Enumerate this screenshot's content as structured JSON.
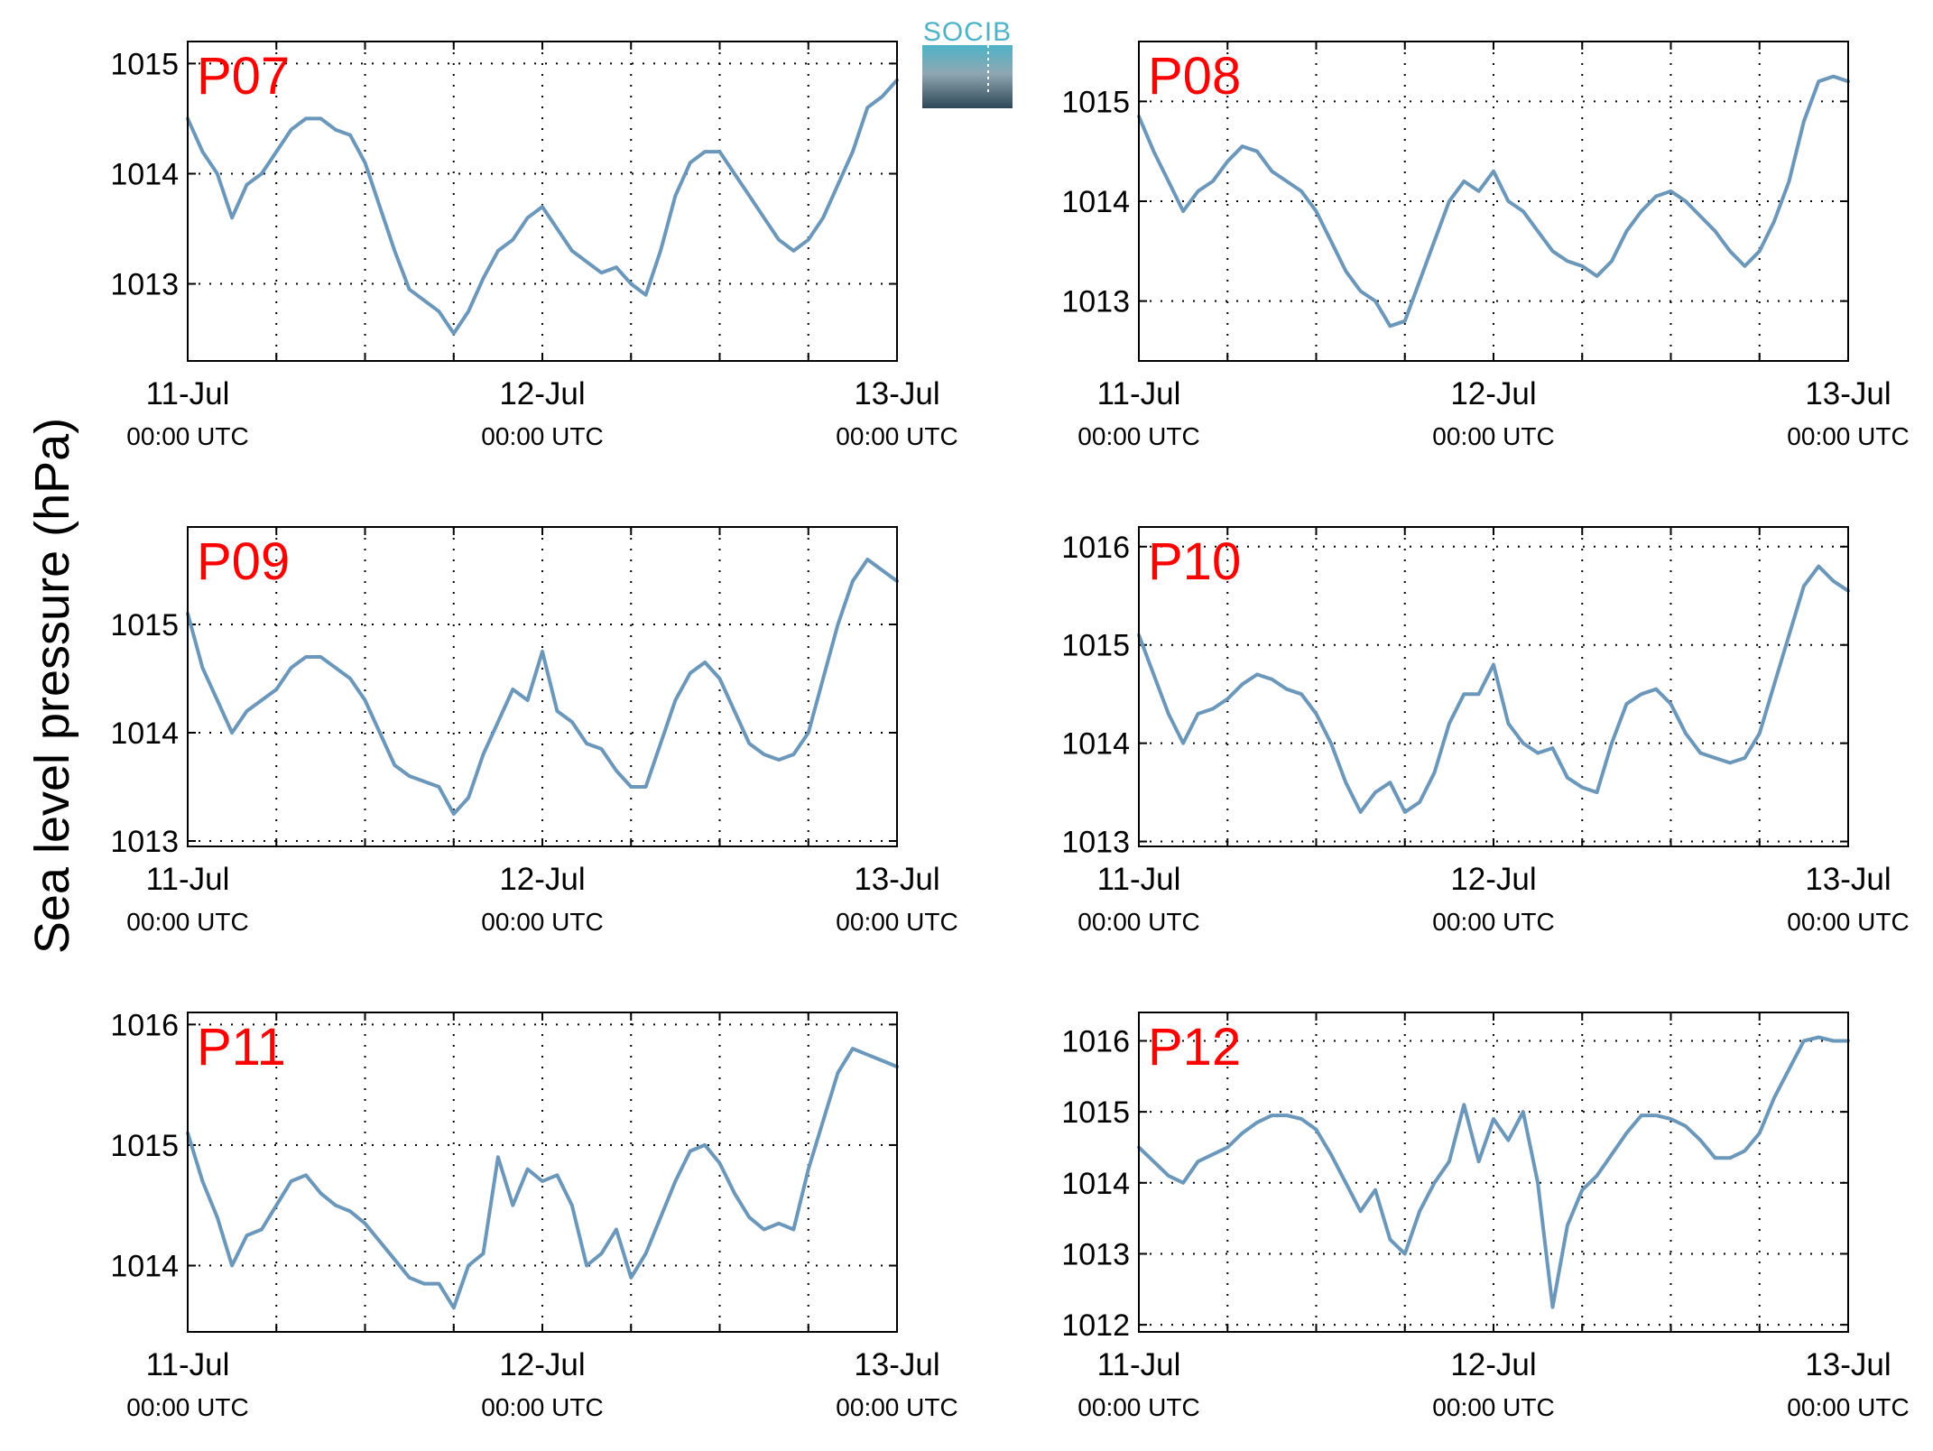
{
  "figure": {
    "ylabel": "Sea level pressure (hPa)",
    "logo_text": "SOCIB",
    "colors": {
      "line": "#6b97ba",
      "panel_label": "#ff0000",
      "axis": "#000000",
      "grid": "#000000",
      "logo_top": "#4fb3c8",
      "logo_bottom": "#2e4756"
    }
  },
  "x_axis": {
    "ticks": [
      {
        "date": "11-Jul",
        "time": "00:00 UTC",
        "hour": 0
      },
      {
        "date": "12-Jul",
        "time": "00:00 UTC",
        "hour": 24
      },
      {
        "date": "13-Jul",
        "time": "00:00 UTC",
        "hour": 48
      }
    ],
    "grid_hours": [
      6,
      12,
      18,
      24,
      30,
      36,
      42
    ],
    "xlim": [
      "11-Jul 00:00 UTC",
      "13-Jul 00:00 UTC"
    ]
  },
  "chart_data": [
    {
      "type": "line",
      "label": "P07",
      "ylim": [
        1012.3,
        1015.2
      ],
      "yticks": [
        1013,
        1014,
        1015
      ],
      "grid": true,
      "x": [
        0,
        1,
        2,
        3,
        4,
        5,
        6,
        7,
        8,
        9,
        10,
        11,
        12,
        13,
        14,
        15,
        16,
        17,
        18,
        19,
        20,
        21,
        22,
        23,
        24,
        25,
        26,
        27,
        28,
        29,
        30,
        31,
        32,
        33,
        34,
        35,
        36,
        37,
        38,
        39,
        40,
        41,
        42,
        43,
        44,
        45,
        46,
        47,
        48
      ],
      "series": [
        {
          "values": [
            1014.5,
            1014.2,
            1014.0,
            1013.6,
            1013.9,
            1014.0,
            1014.2,
            1014.4,
            1014.5,
            1014.5,
            1014.4,
            1014.35,
            1014.1,
            1013.7,
            1013.3,
            1012.95,
            1012.85,
            1012.75,
            1012.55,
            1012.75,
            1013.05,
            1013.3,
            1013.4,
            1013.6,
            1013.7,
            1013.5,
            1013.3,
            1013.2,
            1013.1,
            1013.15,
            1013.0,
            1012.9,
            1013.3,
            1013.8,
            1014.1,
            1014.2,
            1014.2,
            1014.0,
            1013.8,
            1013.6,
            1013.4,
            1013.3,
            1013.4,
            1013.6,
            1013.9,
            1014.2,
            1014.6,
            1014.7,
            1014.85
          ]
        }
      ]
    },
    {
      "type": "line",
      "label": "P08",
      "ylim": [
        1012.4,
        1015.6
      ],
      "yticks": [
        1013,
        1014,
        1015
      ],
      "grid": true,
      "x": [
        0,
        1,
        2,
        3,
        4,
        5,
        6,
        7,
        8,
        9,
        10,
        11,
        12,
        13,
        14,
        15,
        16,
        17,
        18,
        19,
        20,
        21,
        22,
        23,
        24,
        25,
        26,
        27,
        28,
        29,
        30,
        31,
        32,
        33,
        34,
        35,
        36,
        37,
        38,
        39,
        40,
        41,
        42,
        43,
        44,
        45,
        46,
        47,
        48
      ],
      "series": [
        {
          "values": [
            1014.85,
            1014.5,
            1014.2,
            1013.9,
            1014.1,
            1014.2,
            1014.4,
            1014.55,
            1014.5,
            1014.3,
            1014.2,
            1014.1,
            1013.9,
            1013.6,
            1013.3,
            1013.1,
            1013.0,
            1012.75,
            1012.8,
            1013.2,
            1013.6,
            1014.0,
            1014.2,
            1014.1,
            1014.3,
            1014.0,
            1013.9,
            1013.7,
            1013.5,
            1013.4,
            1013.35,
            1013.25,
            1013.4,
            1013.7,
            1013.9,
            1014.05,
            1014.1,
            1014.0,
            1013.85,
            1013.7,
            1013.5,
            1013.35,
            1013.5,
            1013.8,
            1014.2,
            1014.8,
            1015.2,
            1015.25,
            1015.2
          ]
        }
      ]
    },
    {
      "type": "line",
      "label": "P09",
      "ylim": [
        1012.95,
        1015.9
      ],
      "yticks": [
        1013,
        1014,
        1015
      ],
      "grid": true,
      "x": [
        0,
        1,
        2,
        3,
        4,
        5,
        6,
        7,
        8,
        9,
        10,
        11,
        12,
        13,
        14,
        15,
        16,
        17,
        18,
        19,
        20,
        21,
        22,
        23,
        24,
        25,
        26,
        27,
        28,
        29,
        30,
        31,
        32,
        33,
        34,
        35,
        36,
        37,
        38,
        39,
        40,
        41,
        42,
        43,
        44,
        45,
        46,
        47,
        48
      ],
      "series": [
        {
          "values": [
            1015.1,
            1014.6,
            1014.3,
            1014.0,
            1014.2,
            1014.3,
            1014.4,
            1014.6,
            1014.7,
            1014.7,
            1014.6,
            1014.5,
            1014.3,
            1014.0,
            1013.7,
            1013.6,
            1013.55,
            1013.5,
            1013.25,
            1013.4,
            1013.8,
            1014.1,
            1014.4,
            1014.3,
            1014.75,
            1014.2,
            1014.1,
            1013.9,
            1013.85,
            1013.65,
            1013.5,
            1013.5,
            1013.9,
            1014.3,
            1014.55,
            1014.65,
            1014.5,
            1014.2,
            1013.9,
            1013.8,
            1013.75,
            1013.8,
            1014.0,
            1014.5,
            1015.0,
            1015.4,
            1015.6,
            1015.5,
            1015.4
          ]
        }
      ]
    },
    {
      "type": "line",
      "label": "P10",
      "ylim": [
        1012.95,
        1016.2
      ],
      "yticks": [
        1013,
        1014,
        1015,
        1016
      ],
      "grid": true,
      "x": [
        0,
        1,
        2,
        3,
        4,
        5,
        6,
        7,
        8,
        9,
        10,
        11,
        12,
        13,
        14,
        15,
        16,
        17,
        18,
        19,
        20,
        21,
        22,
        23,
        24,
        25,
        26,
        27,
        28,
        29,
        30,
        31,
        32,
        33,
        34,
        35,
        36,
        37,
        38,
        39,
        40,
        41,
        42,
        43,
        44,
        45,
        46,
        47,
        48
      ],
      "series": [
        {
          "values": [
            1015.1,
            1014.7,
            1014.3,
            1014.0,
            1014.3,
            1014.35,
            1014.45,
            1014.6,
            1014.7,
            1014.65,
            1014.55,
            1014.5,
            1014.3,
            1014.0,
            1013.6,
            1013.3,
            1013.5,
            1013.6,
            1013.3,
            1013.4,
            1013.7,
            1014.2,
            1014.5,
            1014.5,
            1014.8,
            1014.2,
            1014.0,
            1013.9,
            1013.95,
            1013.65,
            1013.55,
            1013.5,
            1014.0,
            1014.4,
            1014.5,
            1014.55,
            1014.4,
            1014.1,
            1013.9,
            1013.85,
            1013.8,
            1013.85,
            1014.1,
            1014.6,
            1015.1,
            1015.6,
            1015.8,
            1015.65,
            1015.55
          ]
        }
      ]
    },
    {
      "type": "line",
      "label": "P11",
      "ylim": [
        1013.45,
        1016.1
      ],
      "yticks": [
        1014,
        1015,
        1016
      ],
      "grid": true,
      "x": [
        0,
        1,
        2,
        3,
        4,
        5,
        6,
        7,
        8,
        9,
        10,
        11,
        12,
        13,
        14,
        15,
        16,
        17,
        18,
        19,
        20,
        21,
        22,
        23,
        24,
        25,
        26,
        27,
        28,
        29,
        30,
        31,
        32,
        33,
        34,
        35,
        36,
        37,
        38,
        39,
        40,
        41,
        42,
        43,
        44,
        45,
        46,
        47,
        48
      ],
      "series": [
        {
          "values": [
            1015.1,
            1014.7,
            1014.4,
            1014.0,
            1014.25,
            1014.3,
            1014.5,
            1014.7,
            1014.75,
            1014.6,
            1014.5,
            1014.45,
            1014.35,
            1014.2,
            1014.05,
            1013.9,
            1013.85,
            1013.85,
            1013.65,
            1014.0,
            1014.1,
            1014.9,
            1014.5,
            1014.8,
            1014.7,
            1014.75,
            1014.5,
            1014.0,
            1014.1,
            1014.3,
            1013.9,
            1014.1,
            1014.4,
            1014.7,
            1014.95,
            1015.0,
            1014.85,
            1014.6,
            1014.4,
            1014.3,
            1014.35,
            1014.3,
            1014.8,
            1015.2,
            1015.6,
            1015.8,
            1015.75,
            1015.7,
            1015.65
          ]
        }
      ]
    },
    {
      "type": "line",
      "label": "P12",
      "ylim": [
        1011.9,
        1016.4
      ],
      "yticks": [
        1012,
        1013,
        1014,
        1015,
        1016
      ],
      "grid": true,
      "x": [
        0,
        1,
        2,
        3,
        4,
        5,
        6,
        7,
        8,
        9,
        10,
        11,
        12,
        13,
        14,
        15,
        16,
        17,
        18,
        19,
        20,
        21,
        22,
        23,
        24,
        25,
        26,
        27,
        28,
        29,
        30,
        31,
        32,
        33,
        34,
        35,
        36,
        37,
        38,
        39,
        40,
        41,
        42,
        43,
        44,
        45,
        46,
        47,
        48
      ],
      "series": [
        {
          "values": [
            1014.5,
            1014.3,
            1014.1,
            1014.0,
            1014.3,
            1014.4,
            1014.5,
            1014.7,
            1014.85,
            1014.95,
            1014.95,
            1014.9,
            1014.75,
            1014.4,
            1014.0,
            1013.6,
            1013.9,
            1013.2,
            1013.0,
            1013.6,
            1014.0,
            1014.3,
            1015.1,
            1014.3,
            1014.9,
            1014.6,
            1015.0,
            1014.0,
            1012.25,
            1013.4,
            1013.9,
            1014.1,
            1014.4,
            1014.7,
            1014.95,
            1014.95,
            1014.9,
            1014.8,
            1014.6,
            1014.35,
            1014.35,
            1014.45,
            1014.7,
            1015.2,
            1015.6,
            1016.0,
            1016.05,
            1016.0,
            1016.0
          ]
        }
      ]
    }
  ]
}
